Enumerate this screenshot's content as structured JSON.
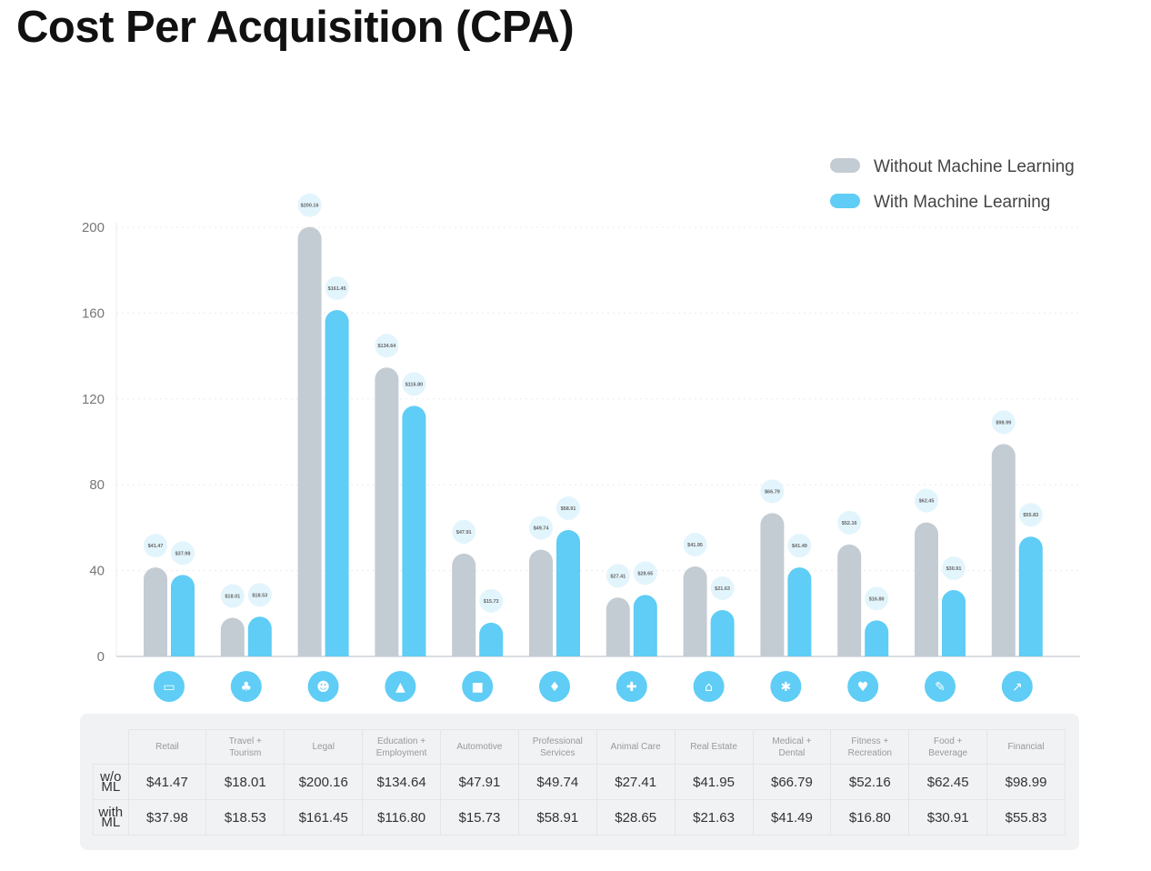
{
  "page_title": "Cost Per Acquisition (CPA)",
  "colors": {
    "without_ml": "#c4ccd3",
    "with_ml": "#5fcdf5",
    "label_bubble": "#e3f5fc",
    "icon_circle": "#5fcdf5",
    "grid": "#e9ecef",
    "axis": "#cfd4d9"
  },
  "chart_data": {
    "type": "bar",
    "title": "Cost Per Acquisition (CPA)",
    "xlabel": "",
    "ylabel": "",
    "ylim": [
      0,
      200
    ],
    "yticks": [
      0,
      40,
      80,
      120,
      160,
      200
    ],
    "grid": true,
    "legend_position": "top-right",
    "categories": [
      "Retail",
      "Travel + Tourism",
      "Legal",
      "Education + Employment",
      "Automotive",
      "Professional Services",
      "Animal Care",
      "Real Estate",
      "Medical + Dental",
      "Fitness + Recreation",
      "Food + Beverage",
      "Financial"
    ],
    "series": [
      {
        "name": "Without Machine Learning",
        "values": [
          41.47,
          18.01,
          200.16,
          134.64,
          47.91,
          49.74,
          27.41,
          41.95,
          66.79,
          52.16,
          62.45,
          98.99
        ],
        "labels": [
          "$41.47",
          "$18.01",
          "$200.16",
          "$134.64",
          "$47.91",
          "$49.74",
          "$27.41",
          "$41.95",
          "$66.79",
          "$52.16",
          "$62.45",
          "$98.99"
        ]
      },
      {
        "name": "With Machine Learning",
        "values": [
          37.98,
          18.53,
          161.45,
          116.8,
          15.73,
          58.91,
          28.65,
          21.63,
          41.49,
          16.8,
          30.91,
          55.83
        ],
        "labels": [
          "$37.98",
          "$18.53",
          "$161.45",
          "$116.80",
          "$15.73",
          "$58.91",
          "$28.65",
          "$21.63",
          "$41.49",
          "$16.80",
          "$30.91",
          "$55.83"
        ]
      }
    ],
    "category_icons": [
      "credit-card-icon",
      "palm-tree-icon",
      "people-icon",
      "graduation-cap-icon",
      "truck-icon",
      "drops-icon",
      "medical-kit-icon",
      "house-icon",
      "tooth-icon",
      "heart-icon",
      "food-icon",
      "chart-icon"
    ],
    "icon_glyphs": [
      "▭",
      "♣",
      "☻",
      "▲",
      "■",
      "♦",
      "✚",
      "⌂",
      "✱",
      "♥",
      "✎",
      "↗"
    ]
  },
  "table": {
    "headers": [
      [
        "Retail"
      ],
      [
        "Travel +",
        "Tourism"
      ],
      [
        "Legal"
      ],
      [
        "Education +",
        "Employment"
      ],
      [
        "Automotive"
      ],
      [
        "Professional",
        "Services"
      ],
      [
        "Animal Care"
      ],
      [
        "Real Estate"
      ],
      [
        "Medical +",
        "Dental"
      ],
      [
        "Fitness +",
        "Recreation"
      ],
      [
        "Food +",
        "Beverage"
      ],
      [
        "Financial"
      ]
    ],
    "rows": [
      {
        "label": [
          "w/o",
          "ML"
        ],
        "values": [
          "$41.47",
          "$18.01",
          "$200.16",
          "$134.64",
          "$47.91",
          "$49.74",
          "$27.41",
          "$41.95",
          "$66.79",
          "$52.16",
          "$62.45",
          "$98.99"
        ]
      },
      {
        "label": [
          "with",
          "ML"
        ],
        "values": [
          "$37.98",
          "$18.53",
          "$161.45",
          "$116.80",
          "$15.73",
          "$58.91",
          "$28.65",
          "$21.63",
          "$41.49",
          "$16.80",
          "$30.91",
          "$55.83"
        ]
      }
    ]
  }
}
